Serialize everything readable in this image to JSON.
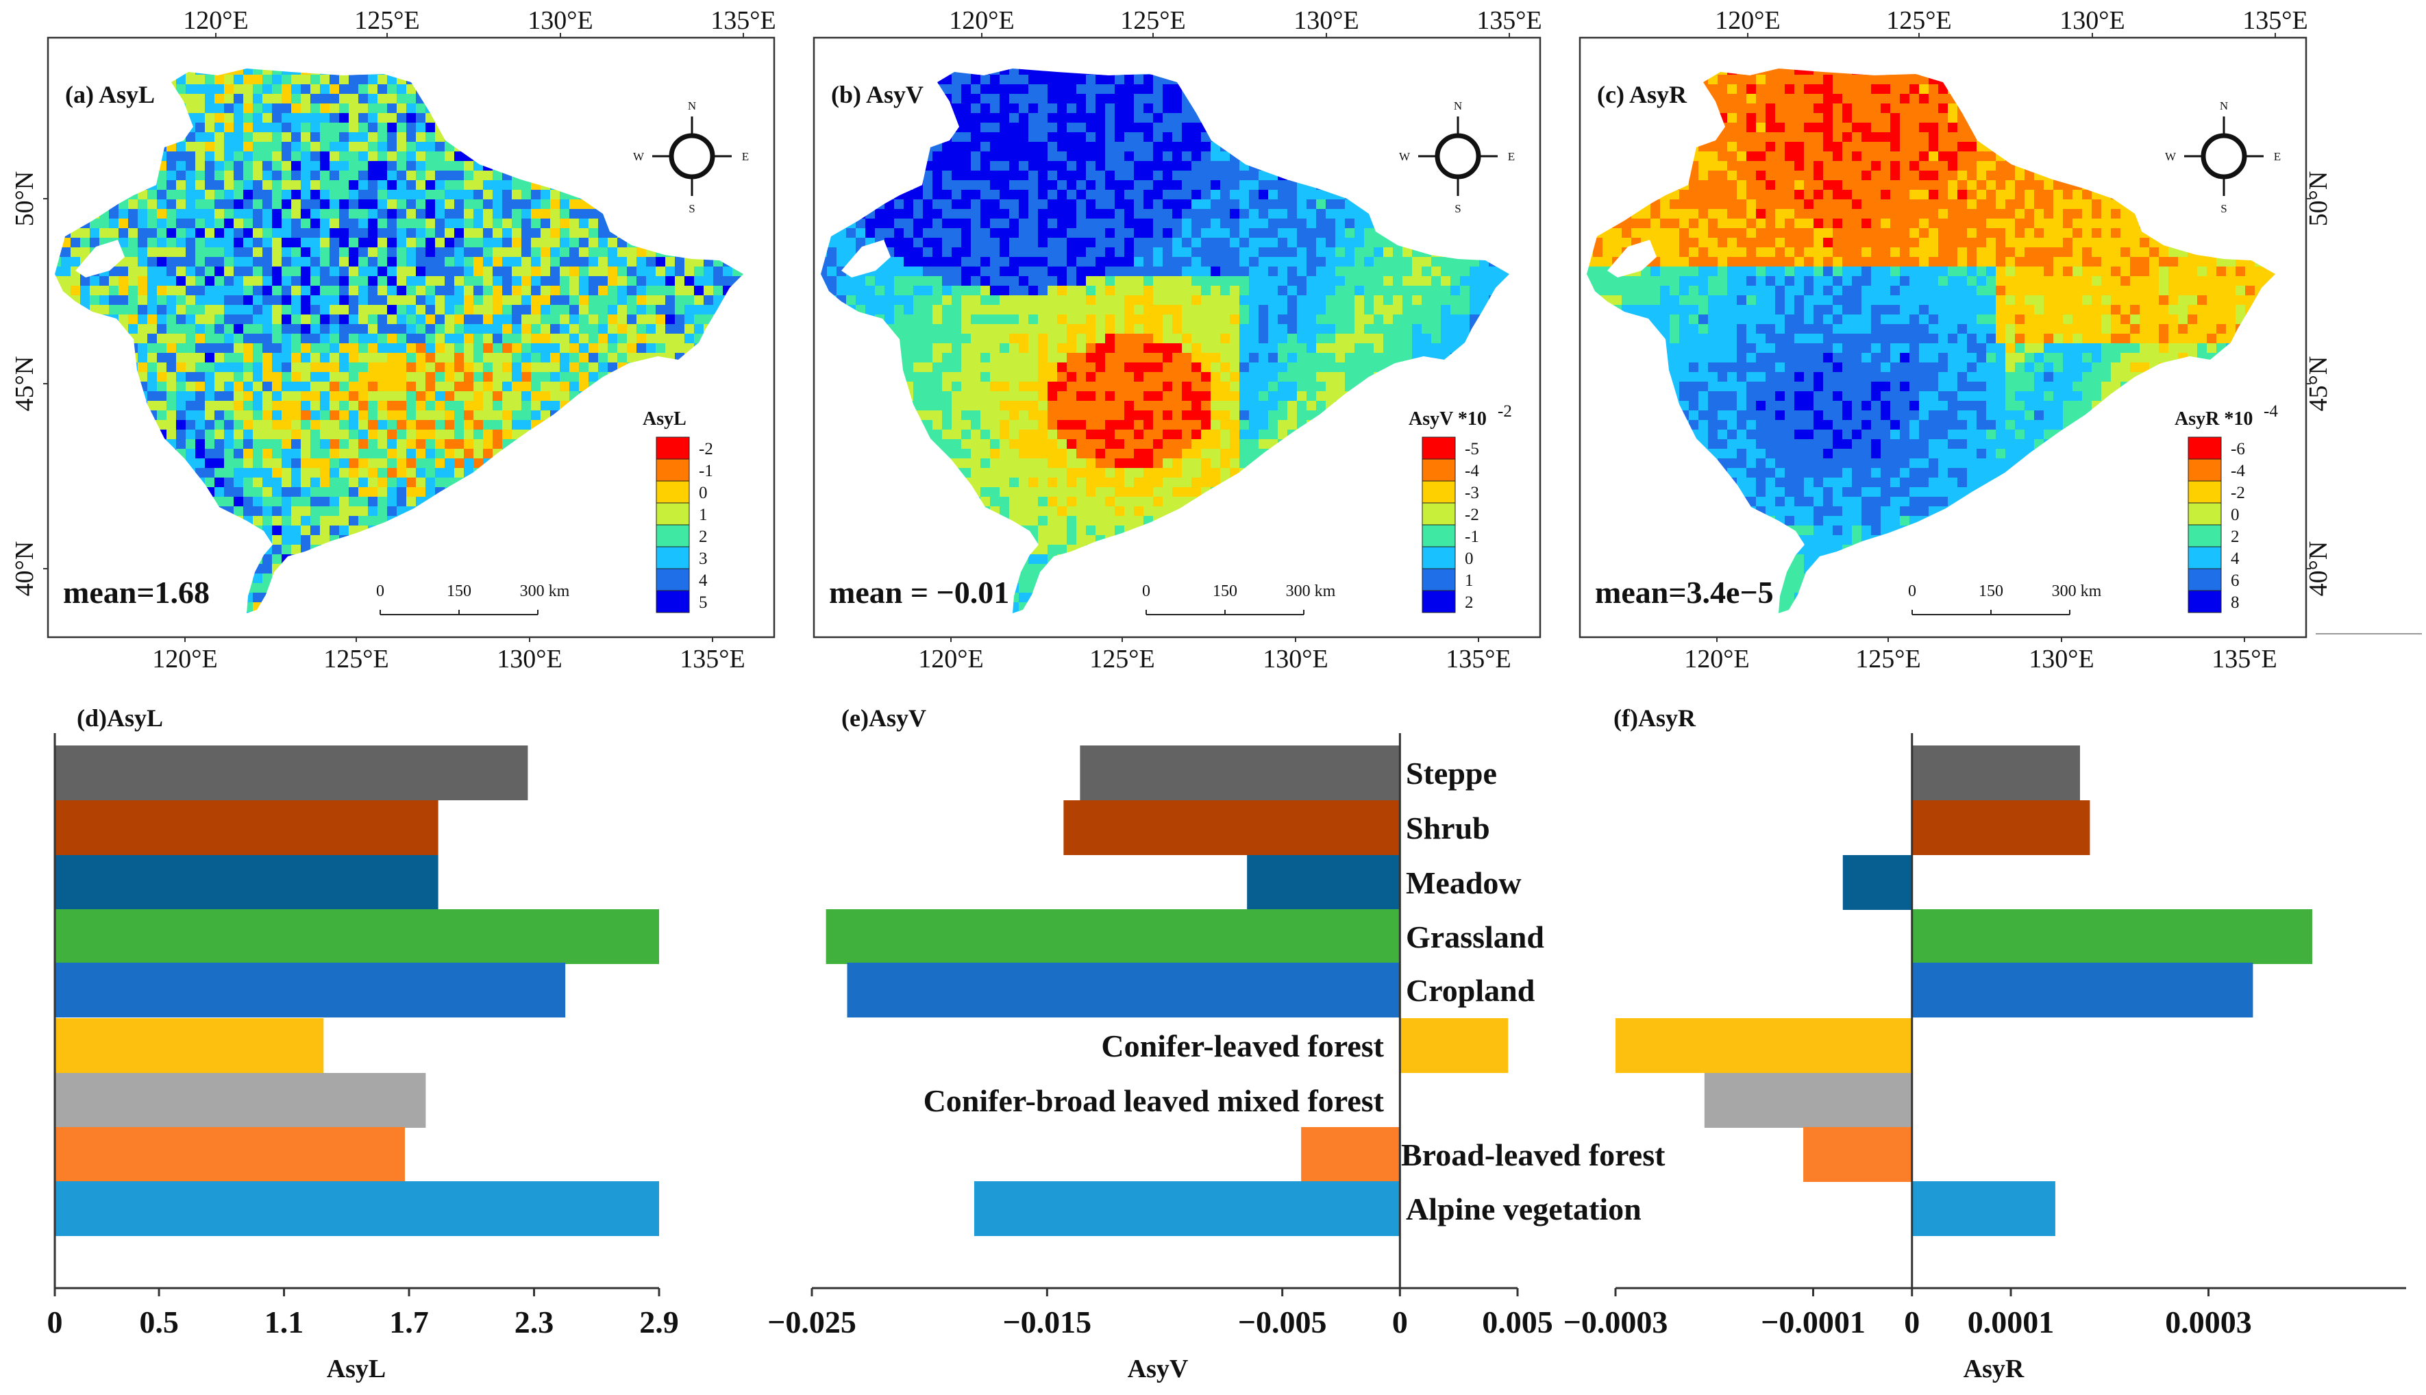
{
  "figure": {
    "maps": [
      {
        "id": "a",
        "title": "(a)  AsyL",
        "mean_label": "mean=1.68",
        "legend": {
          "title": "AsyL",
          "labels": [
            "-2",
            "-1",
            "0",
            "1",
            "2",
            "3",
            "4",
            "5"
          ],
          "colors": [
            "#ff0000",
            "#ff7a00",
            "#ffd000",
            "#c8ef3a",
            "#3fe9a4",
            "#19c2ff",
            "#1f6fe8",
            "#0000ee"
          ]
        },
        "map_palette": [
          "#0000ee",
          "#1f6fe8",
          "#19c2ff",
          "#3fe9a4",
          "#c8ef3a",
          "#ffd000",
          "#ff7a00",
          "#ff0000"
        ],
        "pattern": "noise"
      },
      {
        "id": "b",
        "title": "(b)  AsyV",
        "mean_label": "mean = −0.01",
        "legend": {
          "title": "AsyV *10",
          "title_exp": "-2",
          "labels": [
            "-5",
            "-4",
            "-3",
            "-2",
            "-1",
            "0",
            "1",
            "2"
          ],
          "colors": [
            "#ff0000",
            "#ff7a00",
            "#ffd000",
            "#c8ef3a",
            "#3fe9a4",
            "#19c2ff",
            "#1f6fe8",
            "#0000ee"
          ]
        },
        "map_palette": [
          "#0000ee",
          "#1f6fe8",
          "#19c2ff",
          "#3fe9a4",
          "#c8ef3a",
          "#ffd000",
          "#ff7a00",
          "#ff0000"
        ],
        "pattern": "asyv"
      },
      {
        "id": "c",
        "title": "(c)  AsyR",
        "mean_label": "mean=3.4e−5",
        "legend": {
          "title": "AsyR *10",
          "title_exp": "-4",
          "labels": [
            "-6",
            "-4",
            "-2",
            "0",
            "2",
            "4",
            "6",
            "8"
          ],
          "colors": [
            "#ff0000",
            "#ff7a00",
            "#ffd000",
            "#c8ef3a",
            "#3fe9a4",
            "#19c2ff",
            "#1f6fe8",
            "#0000ee"
          ]
        },
        "map_palette": [
          "#0000ee",
          "#1f6fe8",
          "#19c2ff",
          "#3fe9a4",
          "#c8ef3a",
          "#ffd000",
          "#ff7a00",
          "#ff0000"
        ],
        "pattern": "asyr"
      }
    ],
    "lon_ticks": [
      "120°E",
      "125°E",
      "130°E",
      "135°E"
    ],
    "lat_ticks": [
      "50°N",
      "45°N",
      "40°N"
    ],
    "compass": {
      "n": "N",
      "s": "S",
      "e": "E",
      "w": "W"
    },
    "scale_bar": {
      "labels": [
        "0",
        "150",
        "300 km"
      ]
    }
  },
  "chart_data": [
    {
      "type": "bar",
      "orientation": "horizontal",
      "title": "(d)AsyL",
      "xlabel": "AsyL",
      "xlim": [
        0,
        2.9
      ],
      "xticks": [
        0,
        0.5,
        1.1,
        1.7,
        2.3,
        2.9
      ],
      "xtick_labels": [
        "0",
        "0.5",
        "1.1",
        "1.7",
        "2.3",
        "2.9"
      ],
      "categories": [
        "Steppe",
        "Shrub",
        "Meadow",
        "Grassland",
        "Cropland",
        "Conifer-leaved forest",
        "Conifer-broad leaved mixed forest",
        "Broad-leaved forest",
        "Alpine vegetation"
      ],
      "values": [
        2.27,
        1.84,
        1.84,
        2.9,
        2.45,
        1.29,
        1.78,
        1.68,
        2.9
      ]
    },
    {
      "type": "bar",
      "orientation": "horizontal",
      "title": "(e)AsyV",
      "xlabel": "AsyV",
      "xlim": [
        -0.025,
        0.005
      ],
      "xticks": [
        -0.025,
        -0.015,
        -0.005,
        0,
        0.005
      ],
      "xtick_labels": [
        "−0.025",
        "−0.015",
        "−0.005",
        "0",
        "0.005"
      ],
      "categories": [
        "Steppe",
        "Shrub",
        "Meadow",
        "Grassland",
        "Cropland",
        "Conifer-leaved forest",
        "Conifer-broad leaved mixed forest",
        "Broad-leaved forest",
        "Alpine vegetation"
      ],
      "values": [
        -0.0136,
        -0.0143,
        -0.0065,
        -0.0244,
        -0.0235,
        0.0046,
        0,
        -0.0042,
        -0.0181
      ]
    },
    {
      "type": "bar",
      "orientation": "horizontal",
      "title": "(f)AsyR",
      "xlabel": "AsyR",
      "xlim": [
        -0.0003,
        0.0005
      ],
      "xticks": [
        -0.0003,
        -0.0001,
        0,
        0.0001,
        0.0003
      ],
      "xtick_labels": [
        "−0.0003",
        "−0.0001",
        "0",
        "0.0001",
        "0.0003"
      ],
      "categories": [
        "Steppe",
        "Shrub",
        "Meadow",
        "Grassland",
        "Cropland",
        "Conifer-leaved forest",
        "Conifer-broad leaved mixed forest",
        "Broad-leaved forest",
        "Alpine vegetation"
      ],
      "values": [
        0.00017,
        0.00018,
        -7e-05,
        0.000405,
        0.000345,
        -0.0003,
        -0.00021,
        -0.00011,
        0.000145
      ]
    }
  ],
  "bar_colors": [
    "#636363",
    "#b34102",
    "#065e91",
    "#41b13d",
    "#1b6ec6",
    "#fec00f",
    "#a7a7a7",
    "#fb7e28",
    "#1e9ad6"
  ]
}
